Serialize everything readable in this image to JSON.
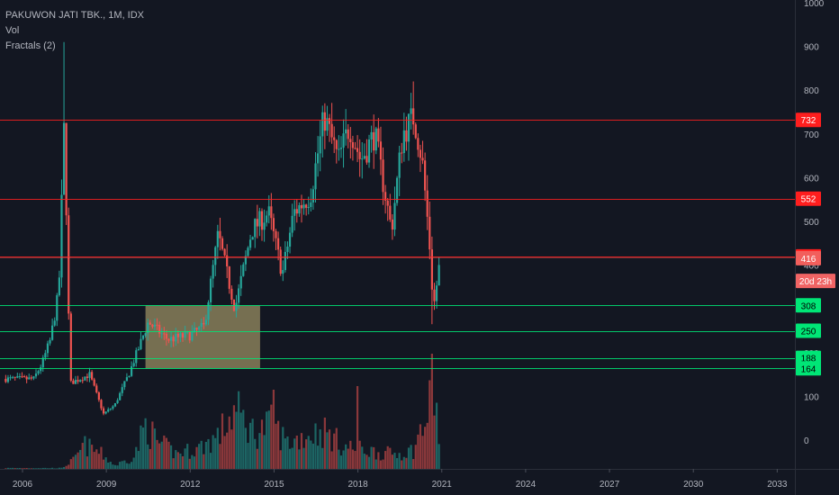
{
  "legend": {
    "title": "PAKUWON JATI TBK., 1M, IDX",
    "line2": "Vol",
    "line3": "Fractals (2)"
  },
  "colors": {
    "background": "#131722",
    "up": "#26a69a",
    "down": "#ef5350",
    "resistance": "#ff1e1e",
    "support": "#00e676",
    "box": "#c8b878",
    "axis_text": "#b2b5be",
    "countdown_tag": "#f06464",
    "price_tag": "#f25f5c"
  },
  "chart_data": {
    "type": "candlestick",
    "title": "PAKUWON JATI TBK., 1M, IDX",
    "x_ticks": [
      "2006",
      "2009",
      "2012",
      "2015",
      "2018",
      "2021",
      "2024",
      "2027",
      "2030",
      "2033"
    ],
    "y_ticks": [
      0,
      100,
      200,
      300,
      400,
      500,
      600,
      700,
      800,
      900,
      1000
    ],
    "y_range": [
      -60,
      1005
    ],
    "x_range": [
      2005.4,
      2034.4
    ],
    "horizontal_levels": [
      {
        "value": 732,
        "label": "732",
        "kind": "resistance"
      },
      {
        "value": 552,
        "label": "552",
        "kind": "resistance"
      },
      {
        "value": 420,
        "label": "420",
        "kind": "resistance"
      },
      {
        "value": 308,
        "label": "308",
        "kind": "support"
      },
      {
        "value": 250,
        "label": "250",
        "kind": "support"
      },
      {
        "value": 188,
        "label": "188",
        "kind": "support"
      },
      {
        "value": 164,
        "label": "164",
        "kind": "support"
      }
    ],
    "current_price": {
      "value": 416,
      "label": "416"
    },
    "countdown": {
      "label": "20d 23h"
    },
    "consolidation_box": {
      "x_start": 2010.4,
      "x_end": 2014.5,
      "y_low": 164,
      "y_high": 308
    },
    "price_anchors": [
      [
        2005.4,
        140
      ],
      [
        2006.4,
        140
      ],
      [
        2006.7,
        175
      ],
      [
        2007.0,
        230
      ],
      [
        2007.3,
        340
      ],
      [
        2007.5,
        740
      ],
      [
        2007.7,
        130
      ],
      [
        2008.4,
        150
      ],
      [
        2008.9,
        60
      ],
      [
        2009.3,
        80
      ],
      [
        2009.8,
        150
      ],
      [
        2010.5,
        270
      ],
      [
        2011.2,
        230
      ],
      [
        2012.0,
        240
      ],
      [
        2012.5,
        260
      ],
      [
        2013.0,
        470
      ],
      [
        2013.6,
        300
      ],
      [
        2014.2,
        480
      ],
      [
        2014.8,
        520
      ],
      [
        2015.3,
        380
      ],
      [
        2015.7,
        520
      ],
      [
        2016.3,
        560
      ],
      [
        2016.8,
        740
      ],
      [
        2017.3,
        640
      ],
      [
        2017.7,
        720
      ],
      [
        2018.1,
        640
      ],
      [
        2018.6,
        700
      ],
      [
        2019.2,
        480
      ],
      [
        2019.6,
        700
      ],
      [
        2020.0,
        740
      ],
      [
        2020.3,
        640
      ],
      [
        2020.55,
        460
      ],
      [
        2020.7,
        300
      ],
      [
        2020.95,
        416
      ]
    ],
    "volume_anchors": [
      [
        2005.4,
        1
      ],
      [
        2007.4,
        1
      ],
      [
        2007.9,
        12
      ],
      [
        2008.2,
        28
      ],
      [
        2008.8,
        18
      ],
      [
        2009.3,
        4
      ],
      [
        2010.0,
        14
      ],
      [
        2010.4,
        52
      ],
      [
        2010.8,
        32
      ],
      [
        2011.5,
        18
      ],
      [
        2012.3,
        24
      ],
      [
        2013.0,
        38
      ],
      [
        2013.6,
        68
      ],
      [
        2014.3,
        42
      ],
      [
        2014.9,
        52
      ],
      [
        2015.5,
        30
      ],
      [
        2016.2,
        40
      ],
      [
        2016.8,
        44
      ],
      [
        2017.5,
        26
      ],
      [
        2018.3,
        22
      ],
      [
        2018.9,
        18
      ],
      [
        2019.5,
        18
      ],
      [
        2020.0,
        22
      ],
      [
        2020.3,
        48
      ],
      [
        2020.5,
        60
      ],
      [
        2020.7,
        100
      ],
      [
        2020.95,
        20
      ]
    ]
  }
}
